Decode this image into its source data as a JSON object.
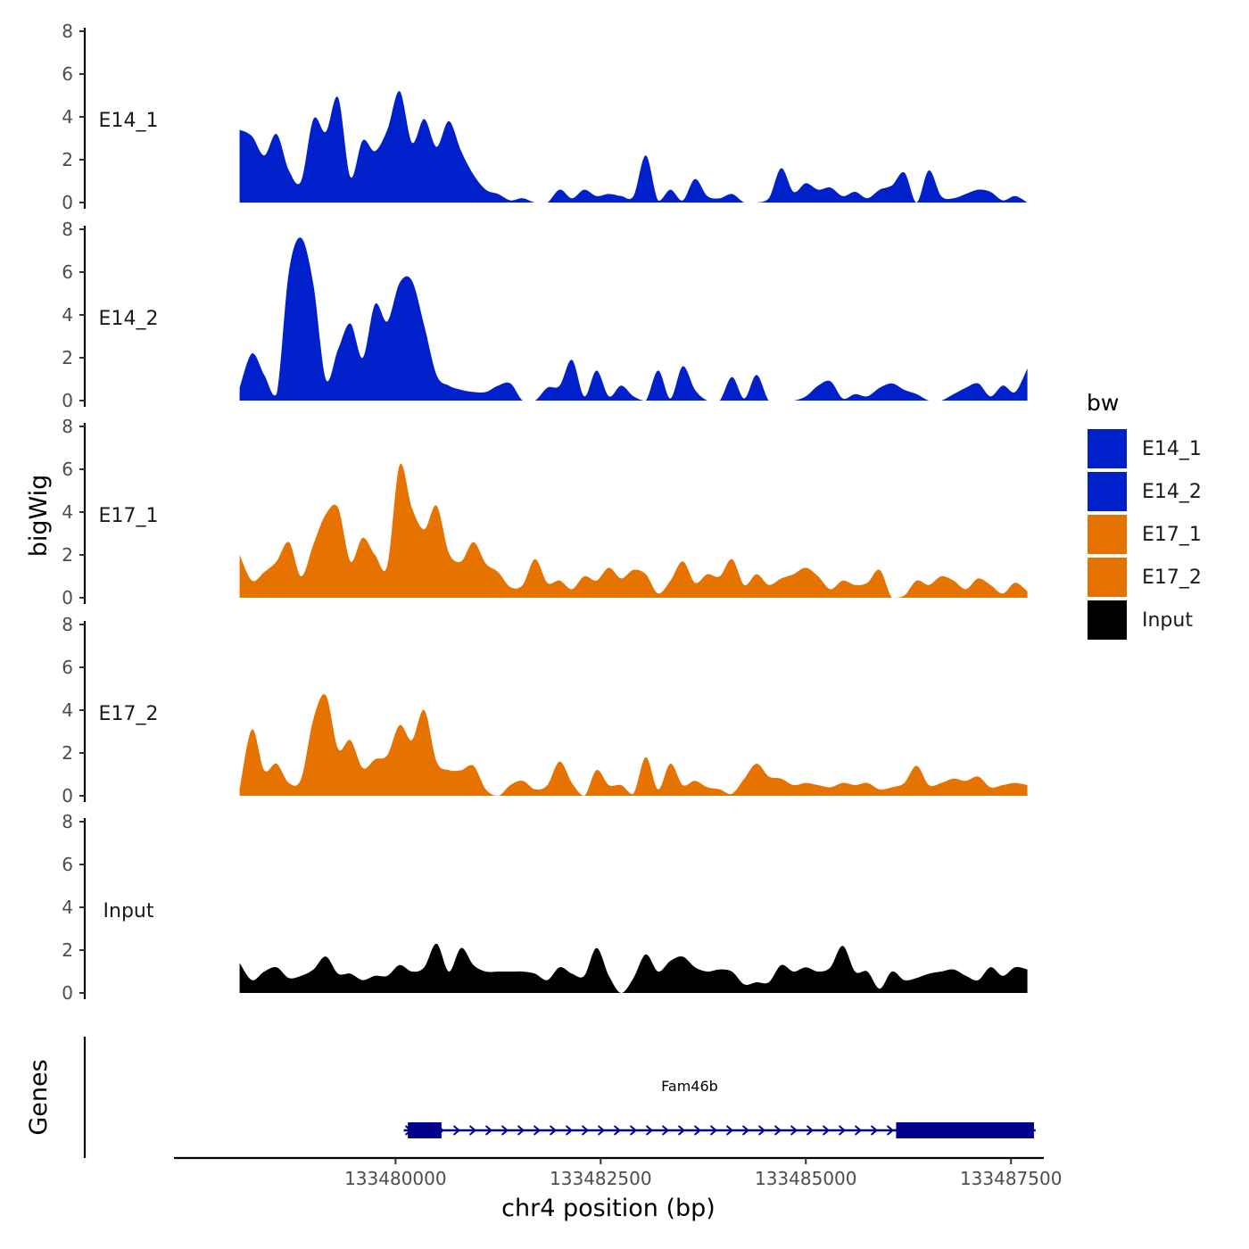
{
  "chart_data": {
    "type": "area",
    "chromosome": "chr4",
    "xlabel": "chr4 position (bp)",
    "ylabel_tracks": "bigWig",
    "ylabel_genes": "Genes",
    "xlim": [
      133477300,
      133487900
    ],
    "x_ticks": [
      133480000,
      133482500,
      133485000,
      133487500
    ],
    "x_tick_labels": [
      "133480000",
      "133482500",
      "133485000",
      "133487500"
    ],
    "ylim": [
      0,
      8
    ],
    "y_ticks": [
      0,
      2,
      4,
      6,
      8
    ],
    "y_tick_labels": [
      "0",
      "2",
      "4",
      "6",
      "8"
    ],
    "track_range": [
      133478100,
      133487700
    ],
    "colors": {
      "E14": "#0020cc",
      "E17": "#e67300",
      "Input": "#000000",
      "gene": "#00008b"
    },
    "legend": {
      "title": "bw",
      "position": "right",
      "entries": [
        {
          "label": "E14_1",
          "color": "#0020cc"
        },
        {
          "label": "E14_2",
          "color": "#0020cc"
        },
        {
          "label": "E17_1",
          "color": "#e67300"
        },
        {
          "label": "E17_2",
          "color": "#e67300"
        },
        {
          "label": "Input",
          "color": "#000000"
        }
      ]
    },
    "series": [
      {
        "name": "E14_1",
        "color": "#0020cc",
        "x": [
          133478100,
          133478250,
          133478400,
          133478550,
          133478700,
          133478850,
          133479000,
          133479150,
          133479300,
          133479450,
          133479600,
          133479750,
          133479900,
          133480050,
          133480200,
          133480350,
          133480500,
          133480650,
          133480800,
          133480950,
          133481100,
          133481250,
          133481400,
          133481550,
          133481700,
          133481850,
          133482000,
          133482150,
          133482300,
          133482450,
          133482600,
          133482750,
          133482900,
          133483050,
          133483200,
          133483350,
          133483500,
          133483650,
          133483800,
          133483950,
          133484100,
          133484250,
          133484400,
          133484550,
          133484700,
          133484850,
          133485000,
          133485150,
          133485300,
          133485450,
          133485600,
          133485750,
          133485900,
          133486050,
          133486200,
          133486350,
          133486500,
          133486650,
          133486800,
          133486950,
          133487100,
          133487250,
          133487400,
          133487550,
          133487700
        ],
        "values": [
          3.4,
          3.1,
          2.2,
          3.2,
          1.5,
          1.0,
          3.9,
          3.3,
          4.9,
          1.2,
          2.9,
          2.4,
          3.4,
          5.2,
          2.8,
          3.9,
          2.6,
          3.8,
          2.4,
          1.3,
          0.6,
          0.4,
          0.1,
          0.2,
          0,
          0,
          0.6,
          0.2,
          0.6,
          0.3,
          0.4,
          0.3,
          0.3,
          2.2,
          0.1,
          0.6,
          0.1,
          1.1,
          0.3,
          0.2,
          0.4,
          0,
          0,
          0.2,
          1.6,
          0.5,
          0.9,
          0.6,
          0.7,
          0.3,
          0.5,
          0.2,
          0.6,
          0.8,
          1.4,
          0,
          1.5,
          0.3,
          0.2,
          0.4,
          0.6,
          0.5,
          0.1,
          0.3,
          0
        ]
      },
      {
        "name": "E14_2",
        "color": "#0020cc",
        "x": [
          133478100,
          133478250,
          133478400,
          133478550,
          133478700,
          133478850,
          133479000,
          133479150,
          133479300,
          133479450,
          133479600,
          133479750,
          133479900,
          133480050,
          133480200,
          133480350,
          133480500,
          133480650,
          133480800,
          133480950,
          133481100,
          133481250,
          133481400,
          133481550,
          133481700,
          133481850,
          133482000,
          133482150,
          133482300,
          133482450,
          133482600,
          133482750,
          133482900,
          133483050,
          133483200,
          133483350,
          133483500,
          133483650,
          133483800,
          133483950,
          133484100,
          133484250,
          133484400,
          133484550,
          133484700,
          133484850,
          133485000,
          133485150,
          133485300,
          133485450,
          133485600,
          133485750,
          133485900,
          133486050,
          133486200,
          133486350,
          133486500,
          133486650,
          133486800,
          133486950,
          133487100,
          133487250,
          133487400,
          133487550,
          133487700
        ],
        "values": [
          0.6,
          2.2,
          1.2,
          0.3,
          6.0,
          7.6,
          5.4,
          1.0,
          2.4,
          3.6,
          2.0,
          4.5,
          3.7,
          5.5,
          5.6,
          3.5,
          1.2,
          0.7,
          0.5,
          0.4,
          0.4,
          0.7,
          0.8,
          0,
          0,
          0.6,
          0.7,
          1.9,
          0.2,
          1.4,
          0.2,
          0.7,
          0.2,
          0,
          1.4,
          0.1,
          1.6,
          0.5,
          0,
          0,
          1.1,
          0.1,
          1.2,
          0,
          0,
          0,
          0.2,
          0.7,
          0.9,
          0.1,
          0.3,
          0.2,
          0.6,
          0.8,
          0.5,
          0.3,
          0,
          0,
          0.3,
          0.6,
          0.8,
          0.2,
          0.7,
          0.4,
          1.5
        ]
      },
      {
        "name": "E17_1",
        "color": "#e67300",
        "x": [
          133478100,
          133478250,
          133478400,
          133478550,
          133478700,
          133478850,
          133479000,
          133479150,
          133479300,
          133479450,
          133479600,
          133479750,
          133479900,
          133480050,
          133480200,
          133480350,
          133480500,
          133480650,
          133480800,
          133480950,
          133481100,
          133481250,
          133481400,
          133481550,
          133481700,
          133481850,
          133482000,
          133482150,
          133482300,
          133482450,
          133482600,
          133482750,
          133482900,
          133483050,
          133483200,
          133483350,
          133483500,
          133483650,
          133483800,
          133483950,
          133484100,
          133484250,
          133484400,
          133484550,
          133484700,
          133484850,
          133485000,
          133485150,
          133485300,
          133485450,
          133485600,
          133485750,
          133485900,
          133486050,
          133486200,
          133486350,
          133486500,
          133486650,
          133486800,
          133486950,
          133487100,
          133487250,
          133487400,
          133487550,
          133487700
        ],
        "values": [
          2.0,
          0.8,
          1.2,
          1.7,
          2.6,
          1.0,
          2.5,
          3.9,
          4.2,
          1.7,
          2.8,
          2.0,
          1.5,
          6.2,
          4.2,
          3.2,
          4.3,
          2.1,
          1.7,
          2.6,
          1.6,
          1.2,
          0.5,
          0.6,
          1.8,
          0.7,
          0.8,
          0.4,
          1.0,
          0.8,
          1.4,
          0.9,
          1.3,
          1.1,
          0.2,
          0.8,
          1.7,
          0.7,
          1.1,
          1.0,
          1.8,
          0.6,
          1.1,
          0.6,
          0.9,
          1.1,
          1.4,
          1.0,
          0.4,
          0.8,
          0.6,
          0.7,
          1.3,
          0,
          0.1,
          0.8,
          0.6,
          1.0,
          0.8,
          0.4,
          0.9,
          0.6,
          0.2,
          0.7,
          0.3
        ]
      },
      {
        "name": "E17_2",
        "color": "#e67300",
        "x": [
          133478100,
          133478250,
          133478400,
          133478550,
          133478700,
          133478850,
          133479000,
          133479150,
          133479300,
          133479450,
          133479600,
          133479750,
          133479900,
          133480050,
          133480200,
          133480350,
          133480500,
          133480650,
          133480800,
          133480950,
          133481100,
          133481250,
          133481400,
          133481550,
          133481700,
          133481850,
          133482000,
          133482150,
          133482300,
          133482450,
          133482600,
          133482750,
          133482900,
          133483050,
          133483200,
          133483350,
          133483500,
          133483650,
          133483800,
          133483950,
          133484100,
          133484250,
          133484400,
          133484550,
          133484700,
          133484850,
          133485000,
          133485150,
          133485300,
          133485450,
          133485600,
          133485750,
          133485900,
          133486050,
          133486200,
          133486350,
          133486500,
          133486650,
          133486800,
          133486950,
          133487100,
          133487250,
          133487400,
          133487550,
          133487700
        ],
        "values": [
          0.3,
          3.1,
          1.2,
          1.5,
          0.6,
          0.8,
          3.6,
          4.7,
          2.2,
          2.6,
          1.3,
          1.7,
          1.9,
          3.3,
          2.6,
          4.0,
          1.6,
          1.2,
          1.2,
          1.4,
          0.3,
          0,
          0.5,
          0.7,
          0.3,
          0.5,
          1.6,
          0.6,
          0,
          1.2,
          0.5,
          0.5,
          0.1,
          1.8,
          0.3,
          1.5,
          0.5,
          0.7,
          0.4,
          0.3,
          0.1,
          0.8,
          1.5,
          0.9,
          0.8,
          0.5,
          0.6,
          0.5,
          0.4,
          0.6,
          0.5,
          0.6,
          0.3,
          0.4,
          0.6,
          1.4,
          0.5,
          0.6,
          0.8,
          0.7,
          0.9,
          0.4,
          0.5,
          0.6,
          0.5
        ]
      },
      {
        "name": "Input",
        "color": "#000000",
        "x": [
          133478100,
          133478250,
          133478400,
          133478550,
          133478700,
          133478850,
          133479000,
          133479150,
          133479300,
          133479450,
          133479600,
          133479750,
          133479900,
          133480050,
          133480200,
          133480350,
          133480500,
          133480650,
          133480800,
          133480950,
          133481100,
          133481250,
          133481400,
          133481550,
          133481700,
          133481850,
          133482000,
          133482150,
          133482300,
          133482450,
          133482600,
          133482750,
          133482900,
          133483050,
          133483200,
          133483350,
          133483500,
          133483650,
          133483800,
          133483950,
          133484100,
          133484250,
          133484400,
          133484550,
          133484700,
          133484850,
          133485000,
          133485150,
          133485300,
          133485450,
          133485600,
          133485750,
          133485900,
          133486050,
          133486200,
          133486350,
          133486500,
          133486650,
          133486800,
          133486950,
          133487100,
          133487250,
          133487400,
          133487550,
          133487700
        ],
        "values": [
          1.4,
          0.6,
          1.0,
          1.2,
          0.7,
          0.8,
          1.1,
          1.7,
          0.9,
          0.9,
          0.6,
          0.8,
          0.8,
          1.3,
          1.0,
          1.2,
          2.3,
          1.0,
          2.1,
          1.3,
          1.0,
          1.0,
          1.0,
          1.0,
          0.9,
          0.6,
          1.2,
          0.9,
          0.8,
          2.1,
          0.8,
          0,
          0.7,
          1.8,
          1.0,
          1.5,
          1.7,
          1.2,
          1.0,
          1.1,
          1.0,
          0.4,
          0.5,
          0.5,
          1.3,
          1.0,
          1.2,
          1.0,
          1.2,
          2.2,
          1.0,
          1.0,
          0.2,
          1.0,
          0.6,
          0.7,
          0.9,
          1.0,
          1.1,
          0.8,
          0.6,
          1.2,
          0.8,
          1.2,
          1.1
        ]
      }
    ],
    "gene": {
      "name": "Fam46b",
      "start": 133480100,
      "end": 133487800,
      "strand": "+",
      "exons": [
        [
          133480150,
          133480560
        ],
        [
          133486100,
          133487780
        ]
      ]
    }
  }
}
